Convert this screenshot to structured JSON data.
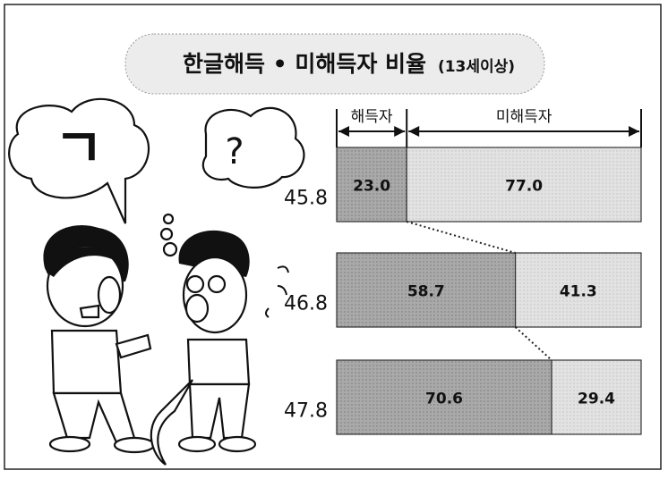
{
  "chart_data": {
    "type": "stacked-bar-horizontal",
    "title": "한글해득 • 미해득자 비율",
    "subtitle": "(13세이상)",
    "categories": [
      "45.8",
      "46.8",
      "47.8"
    ],
    "series": [
      {
        "name": "해득자",
        "color": "#a9a9a9",
        "values": [
          23.0,
          58.7,
          70.6
        ],
        "value_labels": [
          "23.0",
          "58.7",
          "70.6"
        ]
      },
      {
        "name": "미해득자",
        "color": "#e2e2e2",
        "values": [
          77.0,
          41.3,
          29.4
        ],
        "value_labels": [
          "77.0",
          "41.3",
          "29.4"
        ]
      }
    ]
  },
  "illustration": {
    "left_bubble": "ㄱ",
    "right_bubble": "?"
  }
}
